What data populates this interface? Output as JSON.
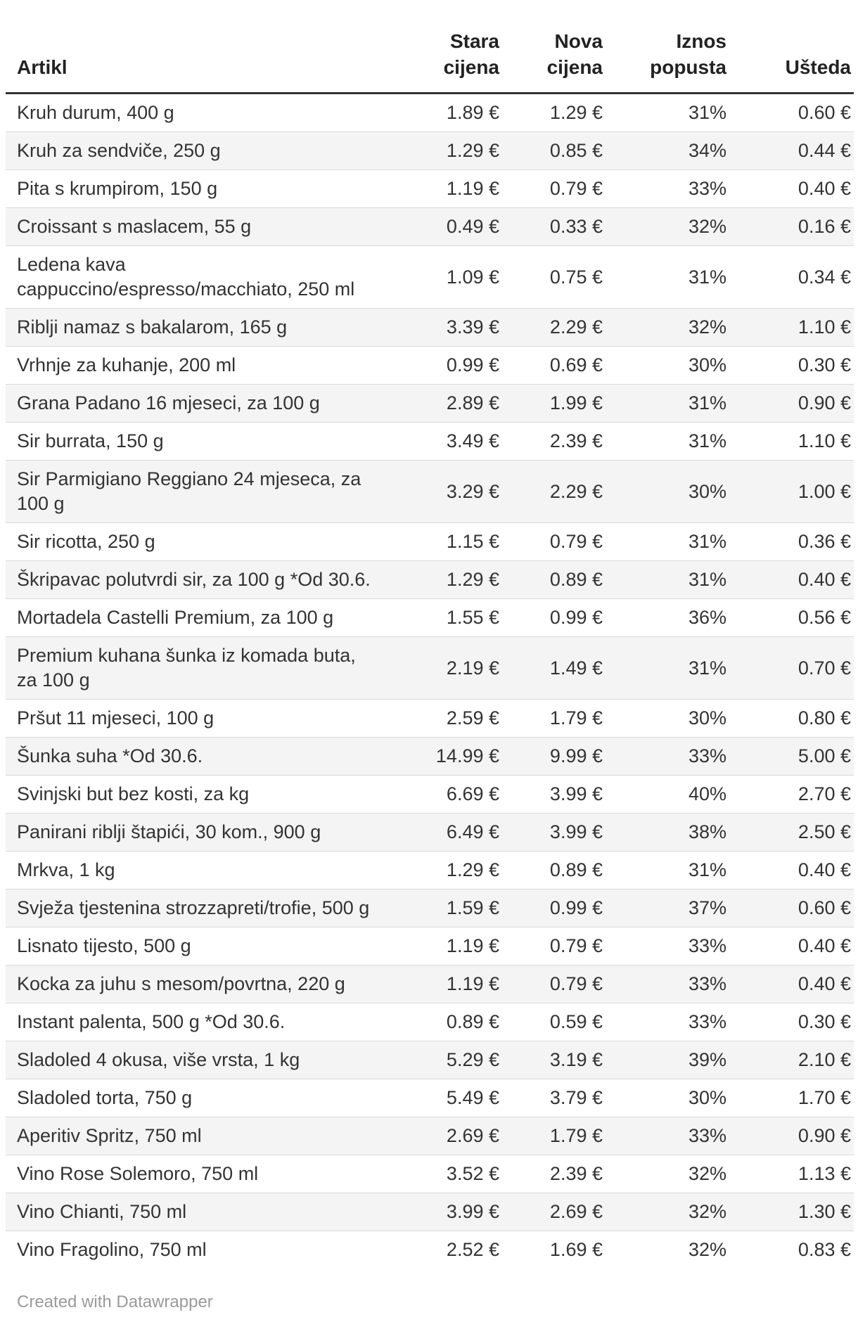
{
  "chart_data": {
    "type": "table",
    "columns": [
      "Artikl",
      "Stara\ncijena",
      "Nova\ncijena",
      "Iznos\npopusta",
      "Ušteda"
    ],
    "rows": [
      [
        "Kruh durum, 400 g",
        "1.89 €",
        "1.29 €",
        "31%",
        "0.60 €"
      ],
      [
        "Kruh za sendviče, 250 g",
        "1.29 €",
        "0.85 €",
        "34%",
        "0.44 €"
      ],
      [
        "Pita s krumpirom, 150 g",
        "1.19 €",
        "0.79 €",
        "33%",
        "0.40 €"
      ],
      [
        "Croissant s maslacem, 55 g",
        "0.49 €",
        "0.33 €",
        "32%",
        "0.16 €"
      ],
      [
        "Ledena kava\ncappuccino/espresso/macchiato, 250 ml",
        "1.09 €",
        "0.75 €",
        "31%",
        "0.34 €"
      ],
      [
        "Riblji namaz s bakalarom, 165 g",
        "3.39 €",
        "2.29 €",
        "32%",
        "1.10 €"
      ],
      [
        "Vrhnje za kuhanje, 200 ml",
        "0.99 €",
        "0.69 €",
        "30%",
        "0.30 €"
      ],
      [
        "Grana Padano 16 mjeseci, za 100 g",
        "2.89 €",
        "1.99 €",
        "31%",
        "0.90 €"
      ],
      [
        "Sir burrata, 150 g",
        "3.49 €",
        "2.39 €",
        "31%",
        "1.10 €"
      ],
      [
        "Sir Parmigiano Reggiano 24 mjeseca, za\n100 g",
        "3.29 €",
        "2.29 €",
        "30%",
        "1.00 €"
      ],
      [
        "Sir ricotta, 250 g",
        "1.15 €",
        "0.79 €",
        "31%",
        "0.36 €"
      ],
      [
        "Škripavac polutvrdi sir, za 100 g *Od 30.6.",
        "1.29 €",
        "0.89 €",
        "31%",
        "0.40 €"
      ],
      [
        "Mortadela Castelli Premium, za 100 g",
        "1.55 €",
        "0.99 €",
        "36%",
        "0.56 €"
      ],
      [
        "Premium kuhana šunka iz komada buta,\nza 100 g",
        "2.19 €",
        "1.49 €",
        "31%",
        "0.70 €"
      ],
      [
        "Pršut 11 mjeseci, 100 g",
        "2.59 €",
        "1.79 €",
        "30%",
        "0.80 €"
      ],
      [
        "Šunka suha *Od 30.6.",
        "14.99 €",
        "9.99 €",
        "33%",
        "5.00 €"
      ],
      [
        "Svinjski but bez kosti, za kg",
        "6.69 €",
        "3.99 €",
        "40%",
        "2.70 €"
      ],
      [
        "Panirani riblji štapići, 30 kom., 900 g",
        "6.49 €",
        "3.99 €",
        "38%",
        "2.50 €"
      ],
      [
        "Mrkva, 1 kg",
        "1.29 €",
        "0.89 €",
        "31%",
        "0.40 €"
      ],
      [
        "Svježa tjestenina strozzapreti/trofie, 500 g",
        "1.59 €",
        "0.99 €",
        "37%",
        "0.60 €"
      ],
      [
        "Lisnato tijesto, 500 g",
        "1.19 €",
        "0.79 €",
        "33%",
        "0.40 €"
      ],
      [
        "Kocka za juhu s mesom/povrtna, 220 g",
        "1.19 €",
        "0.79 €",
        "33%",
        "0.40 €"
      ],
      [
        "Instant palenta, 500 g *Od 30.6.",
        "0.89 €",
        "0.59 €",
        "33%",
        "0.30 €"
      ],
      [
        "Sladoled 4 okusa, više vrsta, 1 kg",
        "5.29 €",
        "3.19 €",
        "39%",
        "2.10 €"
      ],
      [
        "Sladoled torta, 750 g",
        "5.49 €",
        "3.79 €",
        "30%",
        "1.70 €"
      ],
      [
        "Aperitiv Spritz, 750 ml",
        "2.69 €",
        "1.79 €",
        "33%",
        "0.90 €"
      ],
      [
        "Vino Rose Solemoro, 750 ml",
        "3.52 €",
        "2.39 €",
        "32%",
        "1.13 €"
      ],
      [
        "Vino Chianti, 750 ml",
        "3.99 €",
        "2.69 €",
        "32%",
        "1.30 €"
      ],
      [
        "Vino Fragolino, 750 ml",
        "2.52 €",
        "1.69 €",
        "32%",
        "0.83 €"
      ]
    ],
    "layout": {
      "striped_rows": true,
      "stripe_color": "#f4f4f4",
      "header_rule_color": "#333333",
      "row_separator_color": "#d9d9d9",
      "text_color": "#333333",
      "credit_color": "#9a9a9a"
    }
  },
  "footer": {
    "credit_text": "Created with Datawrapper"
  }
}
